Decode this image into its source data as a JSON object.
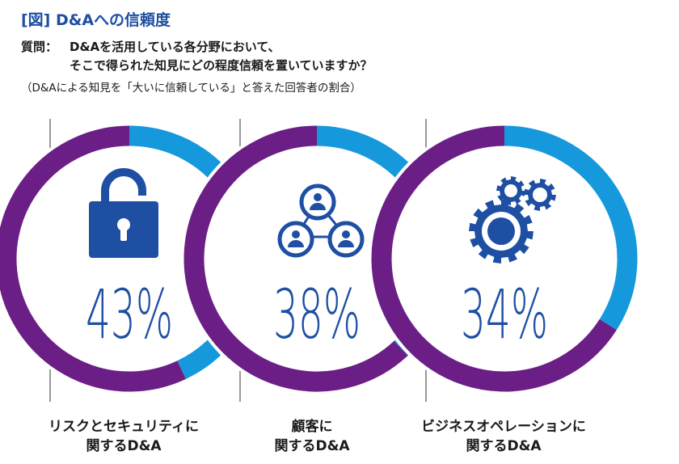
{
  "header": {
    "title": "[図] D&Aへの信頼度",
    "question_label": "質問：",
    "question_lines": [
      "D&Aを活用している各分野において、",
      "そこで得られた知見にどの程度信頼を置いていますか？"
    ],
    "note": "（D&Aによる知見を「大いに信頼している」と答えた回答者の割合）"
  },
  "colors": {
    "accent": "#1598dc",
    "remainder": "#6b1f86",
    "icon": "#1e4fa3",
    "title": "#1e4fa3"
  },
  "chart_data": {
    "type": "pie",
    "unit": "%",
    "items": [
      {
        "category": "リスクとセキュリティに関するD&A",
        "caption_lines": [
          "リスクとセキュリティに",
          "関するD&A"
        ],
        "value": 43,
        "label": "43%",
        "icon": "lock-icon"
      },
      {
        "category": "顧客に関するD&A",
        "caption_lines": [
          "顧客に",
          "関するD&A"
        ],
        "value": 38,
        "label": "38%",
        "icon": "customer-network-icon"
      },
      {
        "category": "ビジネスオペレーションに関するD&A",
        "caption_lines": [
          "ビジネスオペレーションに",
          "関するD&A"
        ],
        "value": 34,
        "label": "34%",
        "icon": "gears-icon"
      }
    ]
  }
}
